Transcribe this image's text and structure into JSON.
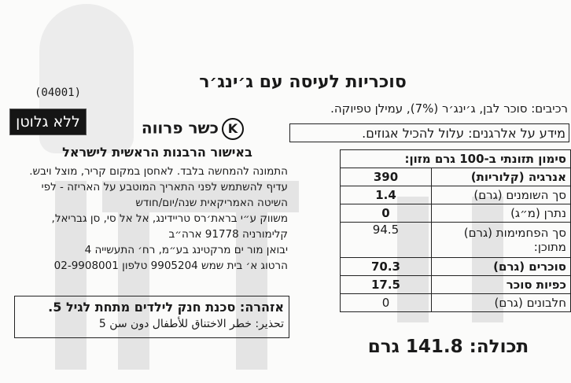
{
  "product": {
    "title": "סוכריות לעיסה עם ג׳ינג׳ר",
    "code": "(04001)",
    "gluten_free": "ללא גלוטן",
    "ingredients": "רכיבים: סוכר לבן, ג׳ינג׳ר (7%), עמילן טפיוקה.",
    "allergens": "מידע על אלרגנים: עלול להכיל אגוזים.",
    "kosher_symbol": "K",
    "kosher": "כשר פרווה",
    "rabbinate": "באישור הרבנות הראשית לישראל"
  },
  "info_lines": [
    "התמונה להמחשה בלבד. לאחסן במקום קריר, מוצל ויבש.",
    "עדיף להשתמש לפני התאריך המוטבע על האריזה - לפי",
    "השיטה האמריקאית שנה/יום/חודש",
    "משווק ע״י בראת׳רס טריידינג, אל אל סי, סן גבריאל,",
    "קלימורניה 91778 ארה״ב",
    "יבואן מור ים מרקטינג בע״מ, רח׳ התעשייה 4",
    "הרטוג א׳ בית שמש 9905204 טלפון 02-9908001"
  ],
  "warning": {
    "hebrew": "אזהרה: סכנת חנק לילדים מתחת לגיל 5.",
    "arabic": "تحذير: خطر الاختناق للأطفال دون سن 5"
  },
  "nutrition": {
    "header": "סימון תזונתי ב-100 גרם מזון:",
    "rows": [
      {
        "name": "אנרגיה (קלוריות)",
        "value": "390"
      },
      {
        "name": "סך השומנים (גרם)",
        "value": "1.4"
      },
      {
        "name": "נתרן (מ״ג)",
        "value": "0"
      },
      {
        "name": "סך הפחמימות (גרם) מתוכן:",
        "value": "94.5"
      },
      {
        "name": "סוכרים (גרם)",
        "value": "70.3"
      },
      {
        "name": "כפיות סוכר",
        "value": "17.5"
      },
      {
        "name": "חלבונים (גרם)",
        "value": "0"
      }
    ]
  },
  "net_weight": "תכולה: 141.8 גרם"
}
